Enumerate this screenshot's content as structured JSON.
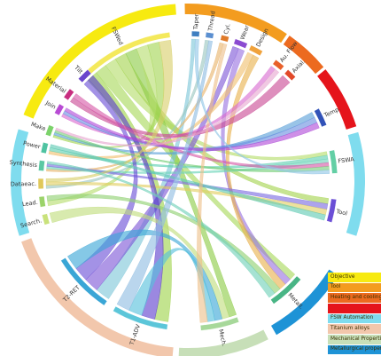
{
  "chart_data": {
    "type": "chord",
    "groups": [
      {
        "name": "Objective",
        "color": "#f7ea10"
      },
      {
        "name": "Tool",
        "color": "#f39c1f"
      },
      {
        "name": "Heating and cooling",
        "color": "#ec6a1f"
      },
      {
        "name": "",
        "color": "#e5141b"
      },
      {
        "name": "FSW Automation",
        "color": "#7fdcee"
      },
      {
        "name": "Titanium alloys",
        "color": "#f2c7ac"
      },
      {
        "name": "Mechanical Properties",
        "color": "#c7dfb8"
      },
      {
        "name": "Metallurgical properties",
        "color": "#1e93d6"
      }
    ],
    "nodes": [
      {
        "label": "FSWed",
        "group": 0,
        "color": "#f4e95b"
      },
      {
        "label": "Taper",
        "group": 1,
        "color": "#3f7fc1"
      },
      {
        "label": "Thread",
        "group": 1,
        "color": "#5b8fd0"
      },
      {
        "label": "Cyl.",
        "group": 1,
        "color": "#e07b2a"
      },
      {
        "label": "Wear",
        "group": 1,
        "color": "#8b4bd1"
      },
      {
        "label": "Design",
        "group": 1,
        "color": "#f0a23b"
      },
      {
        "label": "Au. Flow",
        "group": 2,
        "color": "#e8602a"
      },
      {
        "label": "Axial.",
        "group": 2,
        "color": "#e24a2a"
      },
      {
        "label": "Temp.",
        "group": 3,
        "color": "#3152b8"
      },
      {
        "label": "FSWA",
        "group": 4,
        "color": "#63cfa5"
      },
      {
        "label": "Tool",
        "group": 4,
        "color": "#6b4fd6"
      },
      {
        "label": "Metall.",
        "group": 7,
        "color": "#48b585"
      },
      {
        "label": "Mech.",
        "group": 6,
        "color": "#a7d89a"
      },
      {
        "label": "T1-ADV",
        "group": 5,
        "color": "#5cc6d9"
      },
      {
        "label": "T2-RET",
        "group": 5,
        "color": "#3aa6d6"
      },
      {
        "label": "Search.",
        "group": 0,
        "color": "#c9e27b"
      },
      {
        "label": "Lead.",
        "group": 0,
        "color": "#9bd36a"
      },
      {
        "label": "Dataeac.",
        "group": 0,
        "color": "#e0c85a"
      },
      {
        "label": "Synthesis",
        "group": 0,
        "color": "#5bc9a3"
      },
      {
        "label": "Power",
        "group": 0,
        "color": "#4fc3a1"
      },
      {
        "label": "Make",
        "group": 0,
        "color": "#7cd36b"
      },
      {
        "label": "Join",
        "group": 0,
        "color": "#b84bd4"
      },
      {
        "label": "Material",
        "group": 0,
        "color": "#c72d7f"
      },
      {
        "label": "Tilt",
        "group": 0,
        "color": "#6a44cc"
      }
    ],
    "links": [
      {
        "source": 0,
        "target": 13,
        "color": "#9ed34b"
      },
      {
        "source": 0,
        "target": 11,
        "color": "#a8d95a"
      },
      {
        "source": 0,
        "target": 9,
        "color": "#b5dd6a"
      },
      {
        "source": 0,
        "target": 10,
        "color": "#a4d44f"
      },
      {
        "source": 0,
        "target": 12,
        "color": "#8ccb45"
      },
      {
        "source": 0,
        "target": 16,
        "color": "#b6dd6e"
      },
      {
        "source": 0,
        "target": 20,
        "color": "#a3d553"
      },
      {
        "source": 1,
        "target": 14,
        "color": "#7ec6d8"
      },
      {
        "source": 2,
        "target": 17,
        "color": "#9bc7c0"
      },
      {
        "source": 3,
        "target": 18,
        "color": "#e8b46c"
      },
      {
        "source": 4,
        "target": 14,
        "color": "#7e57d6"
      },
      {
        "source": 4,
        "target": 11,
        "color": "#9a73e0"
      },
      {
        "source": 5,
        "target": 19,
        "color": "#f1c070"
      },
      {
        "source": 5,
        "target": 11,
        "color": "#e9b24d"
      },
      {
        "source": 6,
        "target": 21,
        "color": "#d86bd0"
      },
      {
        "source": 7,
        "target": 22,
        "color": "#c94a94"
      },
      {
        "source": 8,
        "target": 20,
        "color": "#5aa0d9"
      },
      {
        "source": 8,
        "target": 21,
        "color": "#6a8fe0"
      },
      {
        "source": 9,
        "target": 19,
        "color": "#5fd0b2"
      },
      {
        "source": 9,
        "target": 18,
        "color": "#6ed5b9"
      },
      {
        "source": 10,
        "target": 18,
        "color": "#7a6be0"
      },
      {
        "source": 10,
        "target": 17,
        "color": "#e2cf62"
      },
      {
        "source": 23,
        "target": 14,
        "color": "#6b4fd6"
      },
      {
        "source": 23,
        "target": 13,
        "color": "#5e3fcd"
      },
      {
        "source": 22,
        "target": 9,
        "color": "#d65aa8"
      },
      {
        "source": 21,
        "target": 8,
        "color": "#b04bd8"
      },
      {
        "source": 20,
        "target": 9,
        "color": "#78cf7a"
      },
      {
        "source": 15,
        "target": 12,
        "color": "#c0dd7c"
      },
      {
        "source": 16,
        "target": 11,
        "color": "#8fd071"
      },
      {
        "source": 14,
        "target": 12,
        "color": "#3aa6d6"
      },
      {
        "source": 13,
        "target": 12,
        "color": "#56c0dc"
      },
      {
        "source": 17,
        "target": 0,
        "color": "#d8cf6a"
      },
      {
        "source": 19,
        "target": 10,
        "color": "#5fc9b3"
      },
      {
        "source": 18,
        "target": 11,
        "color": "#6fd0b8"
      },
      {
        "source": 2,
        "target": 13,
        "color": "#90bde2"
      },
      {
        "source": 3,
        "target": 12,
        "color": "#eec08a"
      },
      {
        "source": 6,
        "target": 20,
        "color": "#e6a6d0"
      },
      {
        "source": 1,
        "target": 9,
        "color": "#91c7e6"
      }
    ]
  }
}
